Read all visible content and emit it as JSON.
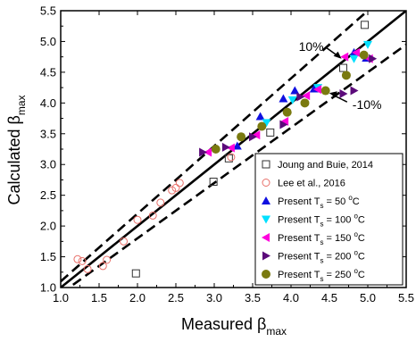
{
  "chart_data": {
    "type": "scatter",
    "xlim": [
      1.0,
      5.5
    ],
    "ylim": [
      1.0,
      5.5
    ],
    "xticks": [
      "1.0",
      "1.5",
      "2.0",
      "2.5",
      "3.0",
      "3.5",
      "4.0",
      "4.5",
      "5.0",
      "5.5"
    ],
    "yticks": [
      "1.0",
      "1.5",
      "2.0",
      "2.5",
      "3.0",
      "3.5",
      "4.0",
      "4.5",
      "5.0",
      "5.5"
    ],
    "xlabel": {
      "main": "Measured β",
      "sub": "max"
    },
    "ylabel": {
      "main": "Calculated β",
      "sub": "max"
    },
    "grid": false,
    "legend_position": "bottom-right",
    "reference_lines": [
      {
        "kind": "identity",
        "style": "solid",
        "points": [
          [
            1.0,
            1.0
          ],
          [
            5.5,
            5.5
          ]
        ]
      },
      {
        "kind": "+10%",
        "style": "dashed",
        "points": [
          [
            1.0,
            1.1
          ],
          [
            5.0,
            5.5
          ]
        ]
      },
      {
        "kind": "-10%",
        "style": "dashed",
        "points": [
          [
            1.0,
            0.9
          ],
          [
            5.5,
            4.95
          ]
        ]
      }
    ],
    "annotations": [
      {
        "text": "10%",
        "x": 4.1,
        "y": 4.85
      },
      {
        "text": "-10%",
        "x": 4.8,
        "y": 3.9
      }
    ],
    "series": [
      {
        "name": "Joung and Buie, 2014",
        "marker": "square-open",
        "color": "#333333",
        "points": [
          [
            1.98,
            1.23
          ],
          [
            2.99,
            2.72
          ],
          [
            3.19,
            3.1
          ],
          [
            3.73,
            3.52
          ],
          [
            4.68,
            4.57
          ],
          [
            4.96,
            5.27
          ]
        ]
      },
      {
        "name": "Lee et al., 2016",
        "marker": "circle-open",
        "color": "#e8706a",
        "points": [
          [
            1.22,
            1.46
          ],
          [
            1.28,
            1.43
          ],
          [
            1.35,
            1.3
          ],
          [
            1.55,
            1.35
          ],
          [
            1.6,
            1.45
          ],
          [
            1.82,
            1.75
          ],
          [
            2.0,
            2.1
          ],
          [
            2.2,
            2.17
          ],
          [
            2.3,
            2.38
          ],
          [
            2.45,
            2.58
          ],
          [
            2.5,
            2.62
          ],
          [
            2.55,
            2.7
          ],
          [
            3.22,
            3.12
          ]
        ]
      },
      {
        "name_parts": [
          "Present T",
          "s",
          " = 50 ",
          "o",
          "C"
        ],
        "marker": "triangle-up",
        "color": "#1010e0",
        "points": [
          [
            3.3,
            3.3
          ],
          [
            3.6,
            3.78
          ],
          [
            3.9,
            4.07
          ],
          [
            4.05,
            4.2
          ],
          [
            4.3,
            4.23
          ],
          [
            4.82,
            4.82
          ],
          [
            4.98,
            4.73
          ]
        ]
      },
      {
        "name_parts": [
          "Present T",
          "s",
          " = 100 ",
          "o",
          "C"
        ],
        "marker": "triangle-down",
        "color": "#00e0ff",
        "points": [
          [
            3.68,
            3.68
          ],
          [
            4.02,
            4.05
          ],
          [
            4.35,
            4.25
          ],
          [
            4.82,
            4.72
          ],
          [
            5.0,
            4.95
          ]
        ]
      },
      {
        "name_parts": [
          "Present T",
          "s",
          " = 150 ",
          "o",
          "C"
        ],
        "marker": "triangle-left",
        "color": "#ff00dd",
        "points": [
          [
            2.92,
            3.2
          ],
          [
            3.22,
            3.27
          ],
          [
            3.55,
            3.48
          ],
          [
            3.92,
            3.7
          ],
          [
            4.2,
            4.12
          ],
          [
            4.35,
            4.22
          ],
          [
            4.7,
            4.75
          ],
          [
            4.85,
            4.82
          ],
          [
            5.02,
            4.72
          ]
        ]
      },
      {
        "name_parts": [
          "Present T",
          "s",
          " = 200 ",
          "o",
          "C"
        ],
        "marker": "triangle-right",
        "color": "#5b0a7a",
        "points": [
          [
            2.85,
            3.2
          ],
          [
            3.15,
            3.28
          ],
          [
            3.5,
            3.45
          ],
          [
            3.9,
            3.65
          ],
          [
            4.12,
            4.1
          ],
          [
            4.68,
            4.15
          ],
          [
            4.82,
            4.2
          ],
          [
            5.06,
            4.72
          ]
        ]
      },
      {
        "name_parts": [
          "Present T",
          "s",
          " = 250 ",
          "o",
          "C"
        ],
        "marker": "circle-filled",
        "color": "#7a7a10",
        "points": [
          [
            3.02,
            3.25
          ],
          [
            3.35,
            3.45
          ],
          [
            3.62,
            3.62
          ],
          [
            3.95,
            3.85
          ],
          [
            4.18,
            4.0
          ],
          [
            4.45,
            4.2
          ],
          [
            4.72,
            4.45
          ],
          [
            4.95,
            4.78
          ]
        ]
      }
    ]
  }
}
